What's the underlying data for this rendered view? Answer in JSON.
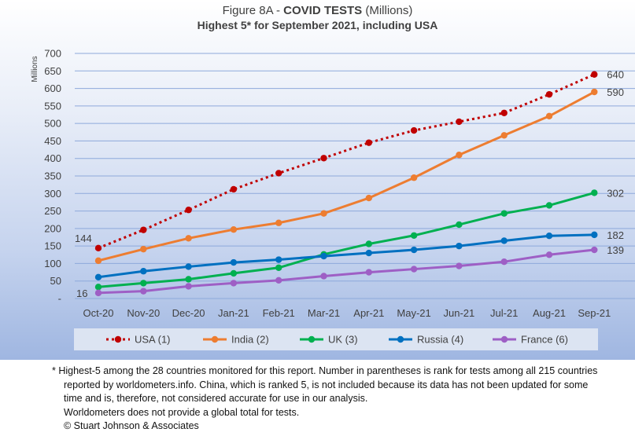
{
  "header": {
    "title_prefix": "Figure 8A - ",
    "title_bold": "COVID TESTS",
    "title_suffix": " (Millions)",
    "subtitle": "Highest 5* for September 2021, including USA"
  },
  "chart_data": {
    "type": "line",
    "title": "Figure 8A - COVID TESTS (Millions)",
    "subtitle": "Highest 5* for September 2021, including USA",
    "xlabel": "",
    "ylabel": "Millions",
    "ylim": [
      0,
      700
    ],
    "ytick_step": 50,
    "ytick_labels": [
      "-",
      "50",
      "100",
      "150",
      "200",
      "250",
      "300",
      "350",
      "400",
      "450",
      "500",
      "550",
      "600",
      "650",
      "700"
    ],
    "grid": "horizontal",
    "legend_position": "bottom",
    "categories": [
      "Oct-20",
      "Nov-20",
      "Dec-20",
      "Jan-21",
      "Feb-21",
      "Mar-21",
      "Apr-21",
      "May-21",
      "Jun-21",
      "Jul-21",
      "Aug-21",
      "Sep-21"
    ],
    "series": [
      {
        "name": "USA (1)",
        "color": "#c00000",
        "style": "dotted",
        "values": [
          144,
          196,
          253,
          312,
          358,
          401,
          445,
          480,
          505,
          530,
          583,
          640
        ]
      },
      {
        "name": "India (2)",
        "color": "#ed7d31",
        "style": "solid",
        "values": [
          108,
          141,
          172,
          197,
          216,
          243,
          287,
          345,
          410,
          466,
          521,
          590
        ]
      },
      {
        "name": "UK (3)",
        "color": "#00b050",
        "style": "solid",
        "values": [
          33,
          44,
          55,
          72,
          88,
          126,
          156,
          180,
          211,
          243,
          266,
          302
        ]
      },
      {
        "name": "Russia (4)",
        "color": "#0070c0",
        "style": "solid",
        "values": [
          61,
          78,
          91,
          103,
          111,
          121,
          130,
          139,
          150,
          165,
          179,
          182
        ]
      },
      {
        "name": "France (6)",
        "color": "#9e5fc5",
        "style": "solid",
        "values": [
          16,
          21,
          35,
          44,
          52,
          64,
          75,
          84,
          93,
          105,
          125,
          139
        ]
      }
    ],
    "data_labels": [
      {
        "series": "USA (1)",
        "index": 0,
        "text": "144"
      },
      {
        "series": "USA (1)",
        "index": 11,
        "text": "640"
      },
      {
        "series": "India (2)",
        "index": 11,
        "text": "590"
      },
      {
        "series": "UK (3)",
        "index": 11,
        "text": "302"
      },
      {
        "series": "Russia (4)",
        "index": 11,
        "text": "182"
      },
      {
        "series": "France (6)",
        "index": 11,
        "text": "139"
      },
      {
        "series": "France (6)",
        "index": 0,
        "text": "16"
      }
    ]
  },
  "footnote": {
    "line1": "* Highest-5 among the 28 countries monitored for this report. Number in parentheses is rank for tests among all 215  countries",
    "line2": "reported by worldometers.info. China, which is ranked 5, is not included because its data has not been updated for some",
    "line3": "time and is, therefore, not considered accurate for use in our analysis.",
    "line4": "Worldometers does not provide a global total for tests.",
    "line5": "© Stuart Johnson & Associates"
  },
  "colors": {
    "axis_text": "#404040",
    "gridline": "#8ea9db"
  }
}
